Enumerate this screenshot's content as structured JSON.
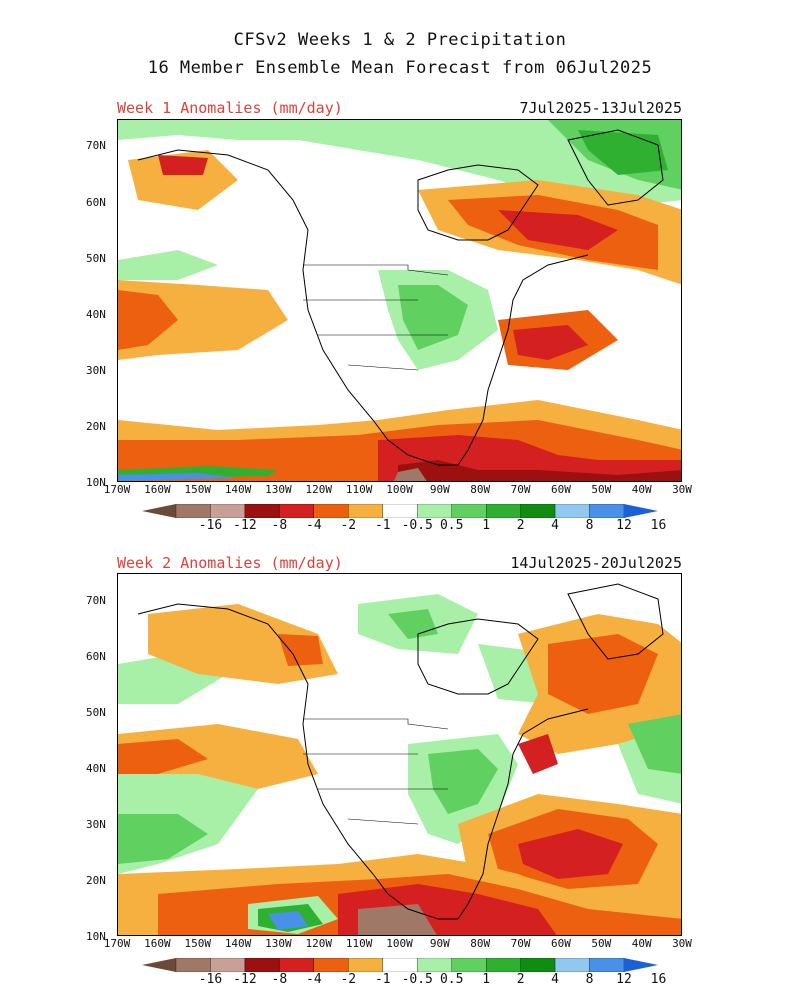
{
  "title_line1": "CFSv2 Weeks 1 & 2 Precipitation",
  "title_line2": "16 Member Ensemble Mean Forecast from 06Jul2025",
  "panels": [
    {
      "label": "Week 1 Anomalies (mm/day)",
      "dates": "7Jul2025-13Jul2025"
    },
    {
      "label": "Week 2 Anomalies (mm/day)",
      "dates": "14Jul2025-20Jul2025"
    }
  ],
  "lat_ticks": [
    "70N",
    "60N",
    "50N",
    "40N",
    "30N",
    "20N",
    "10N"
  ],
  "lon_ticks": [
    "170W",
    "160W",
    "150W",
    "140W",
    "130W",
    "120W",
    "110W",
    "100W",
    "90W",
    "80W",
    "70W",
    "60W",
    "50W",
    "40W",
    "30W"
  ],
  "colorbar": {
    "labels": [
      "-16",
      "-12",
      "-8",
      "-4",
      "-2",
      "-1",
      "-0.5",
      "0.5",
      "1",
      "2",
      "4",
      "8",
      "12",
      "16"
    ],
    "colors": [
      "#6b4a3a",
      "#a07868",
      "#c8a098",
      "#9c1010",
      "#d42020",
      "#ec6010",
      "#f6b040",
      "#ffffff",
      "#a8f0a8",
      "#60d060",
      "#30b030",
      "#108c10",
      "#90c8f0",
      "#4890e8",
      "#1c60d8"
    ]
  },
  "map_colors": {
    "dry_extreme": "#9c1010",
    "dry_strong": "#d42020",
    "dry_moderate": "#ec6010",
    "dry_light": "#f6b040",
    "wet_light": "#a8f0a8",
    "wet_moderate": "#60d060",
    "wet_strong": "#30b030",
    "wet_extreme": "#108c10",
    "very_wet": "#4890e8",
    "very_dry": "#a07868"
  }
}
